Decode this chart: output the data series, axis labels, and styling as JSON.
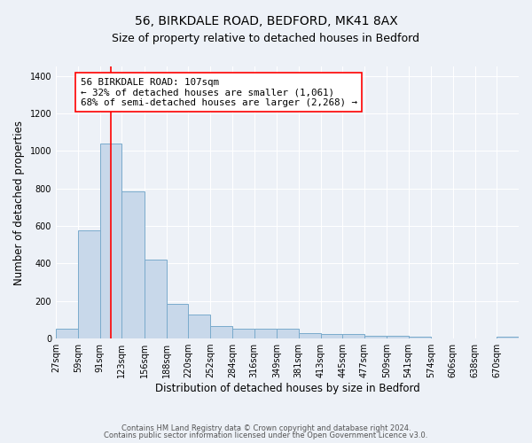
{
  "title1": "56, BIRKDALE ROAD, BEDFORD, MK41 8AX",
  "title2": "Size of property relative to detached houses in Bedford",
  "xlabel": "Distribution of detached houses by size in Bedford",
  "ylabel": "Number of detached properties",
  "bar_edges": [
    27,
    59,
    91,
    123,
    156,
    188,
    220,
    252,
    284,
    316,
    349,
    381,
    413,
    445,
    477,
    509,
    541,
    574,
    606,
    638,
    670
  ],
  "bar_heights": [
    50,
    575,
    1040,
    785,
    420,
    185,
    130,
    65,
    50,
    50,
    50,
    30,
    25,
    25,
    15,
    15,
    10,
    0,
    0,
    0,
    10
  ],
  "bar_color": "#c8d8ea",
  "bar_edgecolor": "#7aabcc",
  "bar_linewidth": 0.7,
  "vline_x": 107,
  "vline_color": "red",
  "vline_linewidth": 1.2,
  "annotation_text": "56 BIRKDALE ROAD: 107sqm\n← 32% of detached houses are smaller (1,061)\n68% of semi-detached houses are larger (2,268) →",
  "ylim": [
    0,
    1450
  ],
  "yticks": [
    0,
    200,
    400,
    600,
    800,
    1000,
    1200,
    1400
  ],
  "background_color": "#edf1f7",
  "plot_background": "#edf1f7",
  "grid_color": "#ffffff",
  "footer1": "Contains HM Land Registry data © Crown copyright and database right 2024.",
  "footer2": "Contains public sector information licensed under the Open Government Licence v3.0.",
  "title1_fontsize": 10,
  "title2_fontsize": 9,
  "annotation_fontsize": 7.8,
  "tick_fontsize": 7,
  "xlabel_fontsize": 8.5,
  "ylabel_fontsize": 8.5,
  "footer_fontsize": 6.0
}
